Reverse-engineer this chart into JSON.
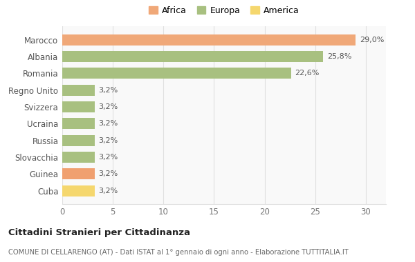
{
  "categories": [
    "Cuba",
    "Guinea",
    "Slovacchia",
    "Russia",
    "Ucraina",
    "Svizzera",
    "Regno Unito",
    "Romania",
    "Albania",
    "Marocco"
  ],
  "values": [
    3.2,
    3.2,
    3.2,
    3.2,
    3.2,
    3.2,
    3.2,
    22.6,
    25.8,
    29.0
  ],
  "labels": [
    "3,2%",
    "3,2%",
    "3,2%",
    "3,2%",
    "3,2%",
    "3,2%",
    "3,2%",
    "22,6%",
    "25,8%",
    "29,0%"
  ],
  "colors": [
    "#f5d76e",
    "#f0a070",
    "#a8c080",
    "#a8c080",
    "#a8c080",
    "#a8c080",
    "#a8c080",
    "#a8c080",
    "#a8c080",
    "#f0a878"
  ],
  "continents": [
    "America",
    "Africa",
    "Europa",
    "Europa",
    "Europa",
    "Europa",
    "Europa",
    "Europa",
    "Europa",
    "Africa"
  ],
  "legend_labels": [
    "Africa",
    "Europa",
    "America"
  ],
  "legend_colors": [
    "#f0a878",
    "#a8c080",
    "#f5d76e"
  ],
  "title": "Cittadini Stranieri per Cittadinanza",
  "subtitle": "COMUNE DI CELLARENGO (AT) - Dati ISTAT al 1° gennaio di ogni anno - Elaborazione TUTTITALIA.IT",
  "xlim": [
    0,
    32
  ],
  "xticks": [
    0,
    5,
    10,
    15,
    20,
    25,
    30
  ],
  "bg_color": "#ffffff",
  "bar_bg_color": "#f9f9f9",
  "grid_color": "#e0e0e0"
}
